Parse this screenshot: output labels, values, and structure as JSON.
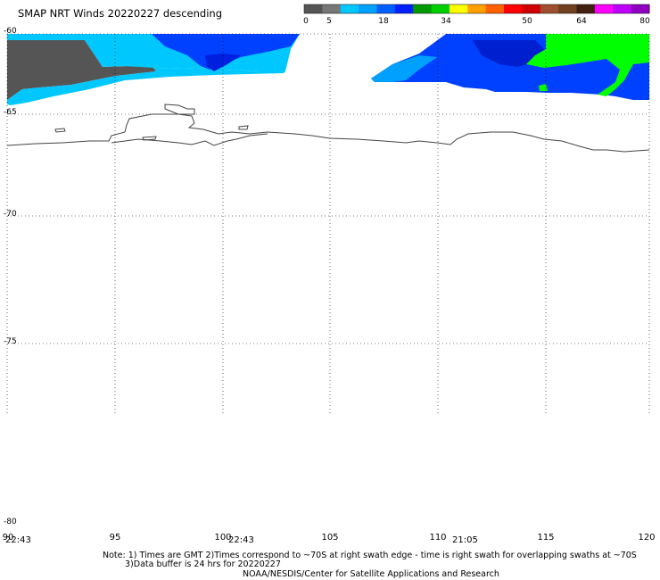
{
  "title": "SMAP NRT Winds  20220227 descending",
  "colorbar": {
    "labels": [
      "0",
      "5",
      "18",
      "34",
      "50",
      "64",
      "80"
    ],
    "segments": [
      "#555555",
      "#777777",
      "#00c8ff",
      "#00a0ff",
      "#0060ff",
      "#0020ff",
      "#009900",
      "#00d000",
      "#ffff00",
      "#ffa000",
      "#ff6000",
      "#ff0000",
      "#d00000",
      "#a05030",
      "#704020",
      "#402010",
      "#ff00ff",
      "#c000ff",
      "#9000c0"
    ]
  },
  "latitude_labels": [
    "-60",
    "-65",
    "-70",
    "-75",
    "-80"
  ],
  "longitude_labels": [
    "90",
    "95",
    "100",
    "105",
    "110",
    "115",
    "120"
  ],
  "swath_times": [
    "22:43",
    "22:43",
    "21:05"
  ],
  "notes": {
    "line1": "Note: 1) Times are GMT 2)Times correspond to ~70S at right swath edge - time is right swath for overlapping swaths at ~70S",
    "line2": "3)Data buffer is 24 hrs for 20220227",
    "credit": "NOAA/NESDIS/Center for Satellite Applications and Research"
  },
  "colors": {
    "calm_gray": "#555555",
    "cyan": "#00c8ff",
    "blue": "#0030ff",
    "green": "#00ff00"
  }
}
